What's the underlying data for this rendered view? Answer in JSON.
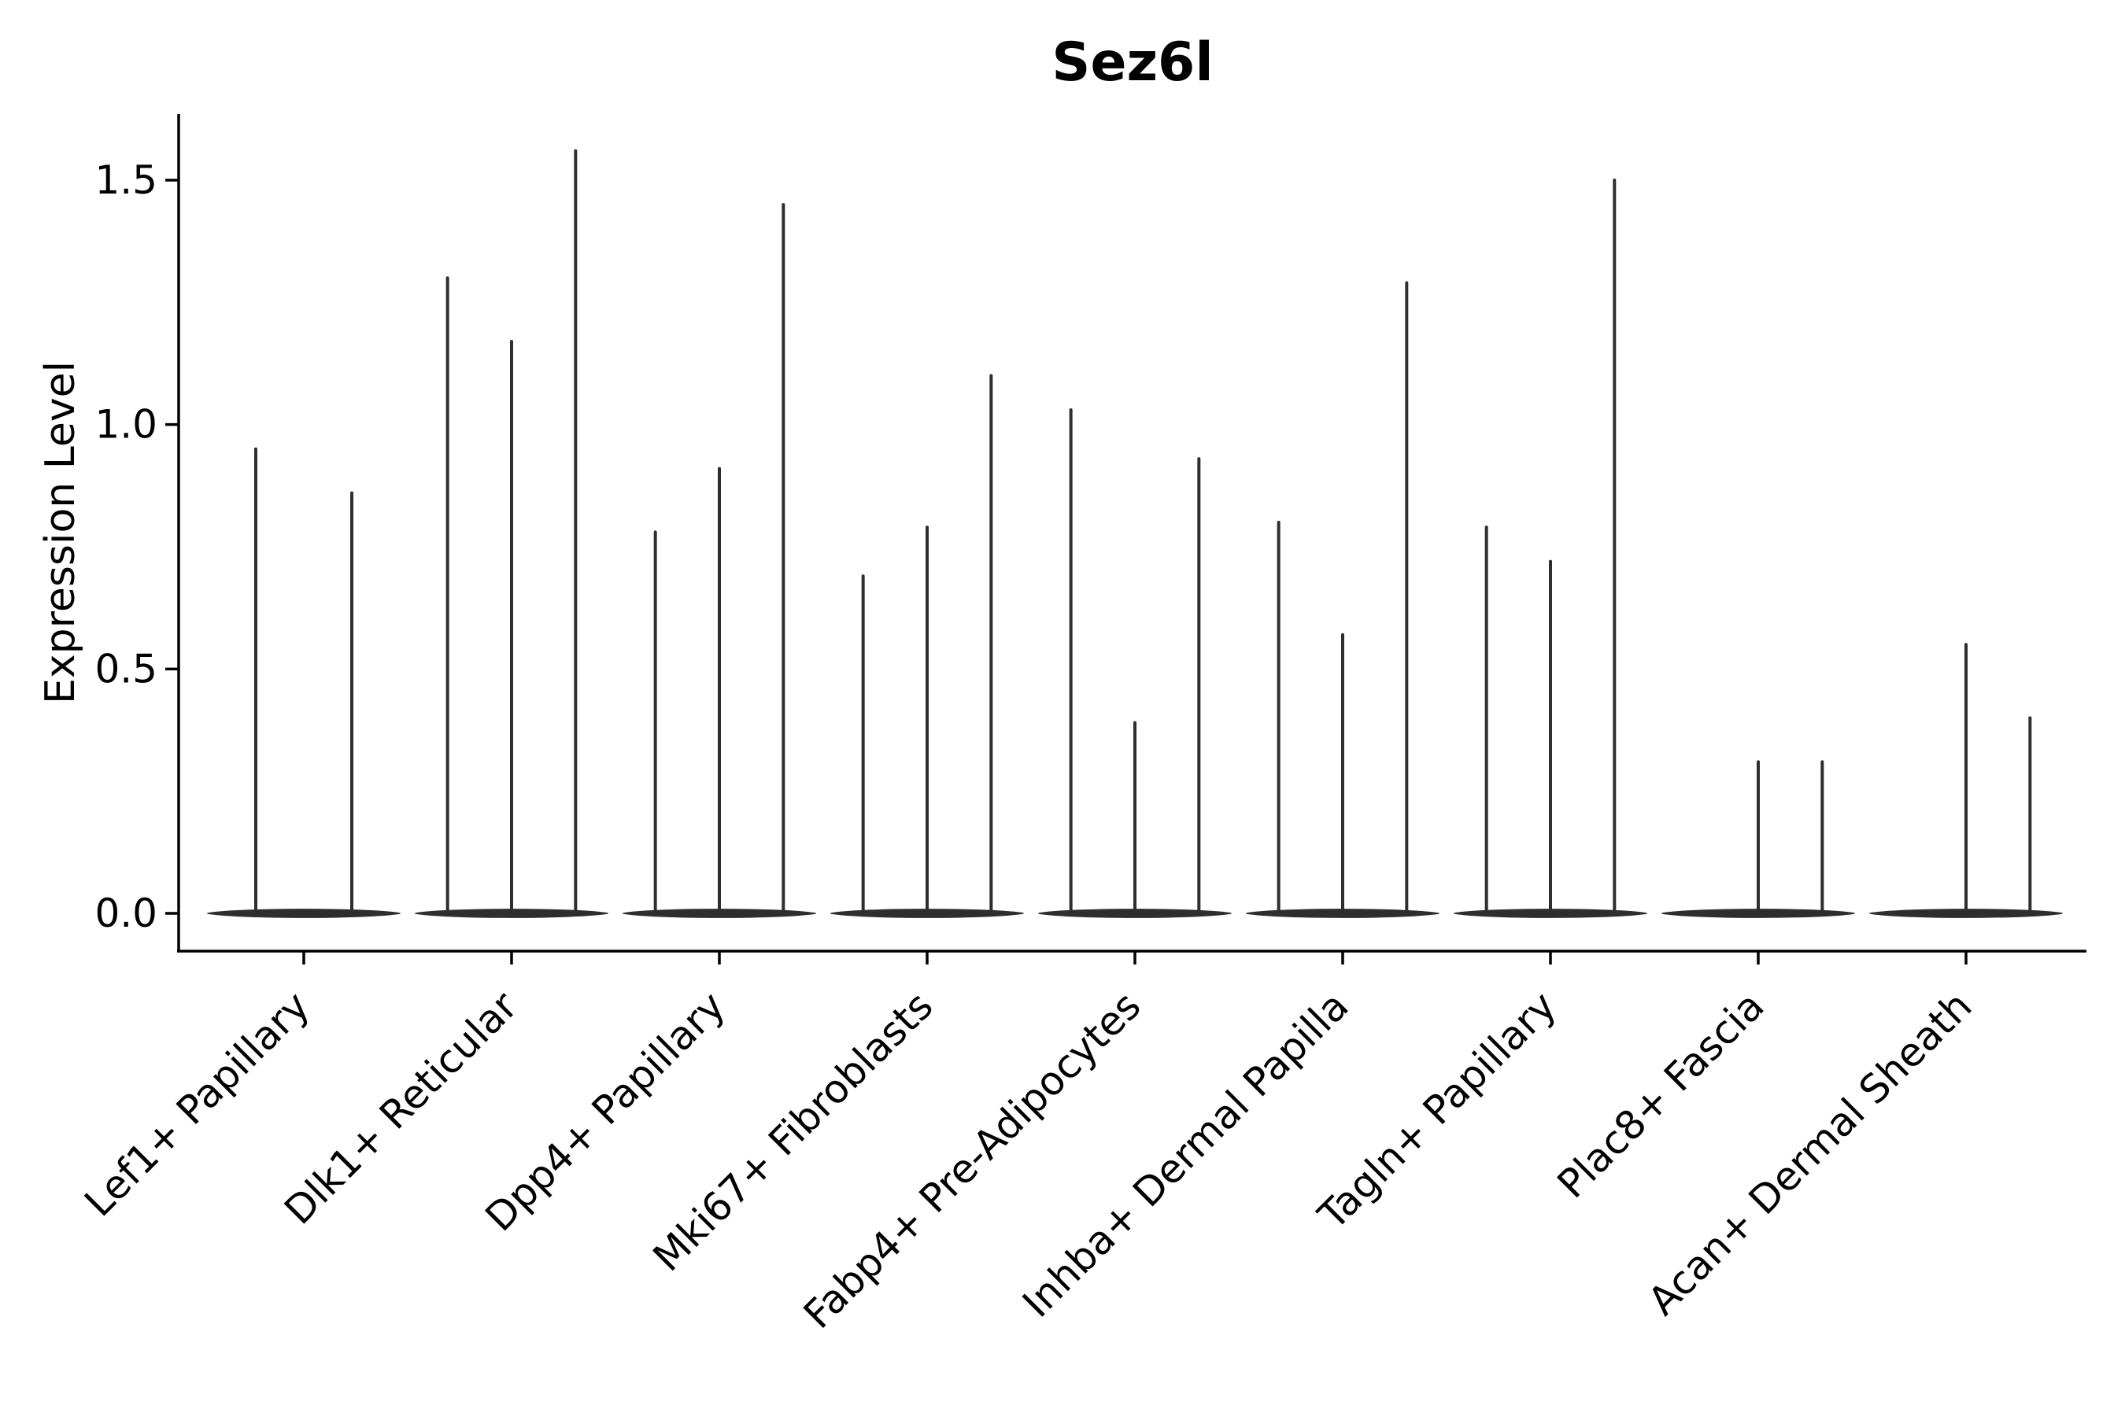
{
  "figure": {
    "title": "Sez6l",
    "y_axis_label": "Expression Level",
    "colors": {
      "violin": "#2e2e2e",
      "axis": "#000000",
      "text": "#000000",
      "background": "#ffffff"
    }
  },
  "chart_data": {
    "type": "violin",
    "title": "Sez6l",
    "xlabel": "",
    "ylabel": "Expression Level",
    "ylim": [
      -0.08,
      1.64
    ],
    "yticks": [
      0.0,
      0.5,
      1.0,
      1.5
    ],
    "ytick_labels": [
      "0.0",
      "0.5",
      "1.0",
      "1.5"
    ],
    "grid": false,
    "legend_position": "none",
    "baseline_value": 0.0,
    "categories": [
      "Lef1+ Papillary",
      "Dlk1+ Reticular",
      "Dpp4+ Papillary",
      "Mki67+ Fibroblasts",
      "Fabp4+ Pre-Adipocytes",
      "Inhba+ Dermal Papilla",
      "Tagln+ Papillary",
      "Plac8+ Fascia",
      "Acan+ Dermal Sheath"
    ],
    "series": [
      {
        "category": "Lef1+ Papillary",
        "violin_peaks": [
          0.95,
          0.86
        ]
      },
      {
        "category": "Dlk1+ Reticular",
        "violin_peaks": [
          1.3,
          1.17,
          1.56
        ]
      },
      {
        "category": "Dpp4+ Papillary",
        "violin_peaks": [
          0.78,
          0.91,
          1.45
        ]
      },
      {
        "category": "Mki67+ Fibroblasts",
        "violin_peaks": [
          0.69,
          0.79,
          1.1
        ]
      },
      {
        "category": "Fabp4+ Pre-Adipocytes",
        "violin_peaks": [
          1.03,
          0.39,
          0.93
        ]
      },
      {
        "category": "Inhba+ Dermal Papilla",
        "violin_peaks": [
          0.8,
          0.57,
          1.29
        ]
      },
      {
        "category": "Tagln+ Papillary",
        "violin_peaks": [
          0.79,
          0.72,
          1.5
        ]
      },
      {
        "category": "Plac8+ Fascia",
        "violin_peaks": [
          0.0,
          0.31,
          0.31
        ]
      },
      {
        "category": "Acan+ Dermal Sheath",
        "violin_peaks": [
          0.0,
          0.55,
          0.4
        ]
      }
    ]
  }
}
